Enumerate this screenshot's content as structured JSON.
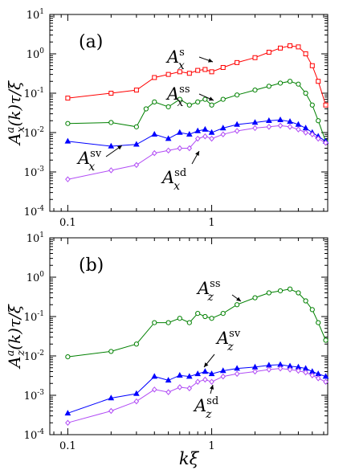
{
  "chart_data": [
    {
      "type": "line",
      "panel_label": "(a)",
      "ylabel": "A_x^a(k)τ/ξ",
      "xscale": "log",
      "yscale": "log",
      "xlim": [
        0.075,
        6.4
      ],
      "ylim": [
        0.0001,
        10
      ],
      "y_ticks": [
        0.0001,
        0.001,
        0.01,
        0.1,
        1,
        10
      ],
      "y_tick_labels": [
        [
          "10",
          "-4"
        ],
        [
          "10",
          "-3"
        ],
        [
          "10",
          "-2"
        ],
        [
          "10",
          "-1"
        ],
        [
          "10",
          "0"
        ],
        [
          "10",
          "1"
        ]
      ],
      "x_ticks": [
        0.1,
        1
      ],
      "x_tick_labels": [
        "0.1",
        "1"
      ],
      "series": [
        {
          "name": "A_x^s",
          "label_base": "A",
          "label_sub": "x",
          "label_sup": "s",
          "color": "#ff0000",
          "marker": "square",
          "x": [
            0.1,
            0.2,
            0.3,
            0.4,
            0.5,
            0.6,
            0.7,
            0.8,
            0.9,
            1.0,
            1.2,
            1.5,
            2.0,
            2.5,
            3.0,
            3.5,
            4.0,
            4.5,
            5.0,
            5.5,
            6.2
          ],
          "y": [
            0.075,
            0.1,
            0.12,
            0.25,
            0.3,
            0.35,
            0.32,
            0.38,
            0.4,
            0.35,
            0.45,
            0.6,
            0.8,
            1.1,
            1.4,
            1.6,
            1.5,
            1.0,
            0.5,
            0.2,
            0.05
          ]
        },
        {
          "name": "A_x^ss",
          "label_base": "A",
          "label_sub": "x",
          "label_sup": "ss",
          "color": "#008000",
          "marker": "circle",
          "x": [
            0.1,
            0.2,
            0.3,
            0.35,
            0.4,
            0.5,
            0.6,
            0.7,
            0.8,
            0.9,
            1.0,
            1.2,
            1.5,
            2.0,
            2.5,
            3.0,
            3.5,
            4.0,
            4.5,
            5.0,
            5.5,
            6.2
          ],
          "y": [
            0.017,
            0.018,
            0.014,
            0.04,
            0.06,
            0.045,
            0.07,
            0.05,
            0.06,
            0.07,
            0.05,
            0.07,
            0.09,
            0.12,
            0.15,
            0.18,
            0.2,
            0.17,
            0.1,
            0.05,
            0.02,
            0.006
          ]
        },
        {
          "name": "A_x^sv",
          "label_base": "A",
          "label_sub": "x",
          "label_sup": "sv",
          "color": "#0000ff",
          "marker": "triangle",
          "x": [
            0.1,
            0.2,
            0.3,
            0.4,
            0.5,
            0.6,
            0.7,
            0.8,
            0.9,
            1.0,
            1.2,
            1.5,
            2.0,
            2.5,
            3.0,
            3.5,
            4.0,
            4.5,
            5.0,
            5.5,
            6.2
          ],
          "y": [
            0.006,
            0.0045,
            0.005,
            0.009,
            0.007,
            0.01,
            0.009,
            0.011,
            0.012,
            0.01,
            0.013,
            0.016,
            0.018,
            0.02,
            0.021,
            0.019,
            0.016,
            0.013,
            0.01,
            0.008,
            0.006
          ]
        },
        {
          "name": "A_x^sd",
          "label_base": "A",
          "label_sub": "x",
          "label_sup": "sd",
          "color": "#b14cf5",
          "marker": "diamond",
          "x": [
            0.1,
            0.2,
            0.3,
            0.4,
            0.5,
            0.6,
            0.7,
            0.8,
            0.9,
            1.0,
            1.2,
            1.5,
            2.0,
            2.5,
            3.0,
            3.5,
            4.0,
            4.5,
            5.0,
            5.5,
            6.2
          ],
          "y": [
            0.00065,
            0.0011,
            0.0015,
            0.003,
            0.0035,
            0.004,
            0.004,
            0.007,
            0.008,
            0.007,
            0.009,
            0.011,
            0.013,
            0.014,
            0.015,
            0.014,
            0.012,
            0.01,
            0.009,
            0.007,
            0.0055
          ]
        }
      ]
    },
    {
      "type": "line",
      "panel_label": "(b)",
      "ylabel": "A_z^a(k)τ/ξ",
      "xlabel": "kξ",
      "xscale": "log",
      "yscale": "log",
      "xlim": [
        0.075,
        6.4
      ],
      "ylim": [
        0.0001,
        10
      ],
      "y_ticks": [
        0.0001,
        0.001,
        0.01,
        0.1,
        1,
        10
      ],
      "y_tick_labels": [
        [
          "10",
          "-4"
        ],
        [
          "10",
          "-3"
        ],
        [
          "10",
          "-2"
        ],
        [
          "10",
          "-1"
        ],
        [
          "10",
          "0"
        ],
        [
          "10",
          "1"
        ]
      ],
      "x_ticks": [
        0.1,
        1
      ],
      "x_tick_labels": [
        "0.1",
        "1"
      ],
      "series": [
        {
          "name": "A_z^ss",
          "label_base": "A",
          "label_sub": "z",
          "label_sup": "ss",
          "color": "#008000",
          "marker": "circle",
          "x": [
            0.1,
            0.2,
            0.3,
            0.4,
            0.5,
            0.6,
            0.7,
            0.8,
            0.9,
            1.0,
            1.2,
            1.5,
            2.0,
            2.5,
            3.0,
            3.5,
            4.0,
            4.5,
            5.0,
            5.5,
            6.2
          ],
          "y": [
            0.0095,
            0.013,
            0.02,
            0.07,
            0.07,
            0.09,
            0.07,
            0.12,
            0.1,
            0.09,
            0.12,
            0.2,
            0.3,
            0.4,
            0.45,
            0.5,
            0.4,
            0.25,
            0.15,
            0.07,
            0.025
          ]
        },
        {
          "name": "A_z^sv",
          "label_base": "A",
          "label_sub": "z",
          "label_sup": "sv",
          "color": "#0000ff",
          "marker": "triangle",
          "x": [
            0.1,
            0.2,
            0.3,
            0.4,
            0.5,
            0.6,
            0.7,
            0.8,
            0.9,
            1.0,
            1.2,
            1.5,
            2.0,
            2.5,
            3.0,
            3.5,
            4.0,
            4.5,
            5.0,
            5.5,
            6.2
          ],
          "y": [
            0.00035,
            0.00085,
            0.0011,
            0.003,
            0.0024,
            0.0032,
            0.003,
            0.0035,
            0.004,
            0.0035,
            0.0042,
            0.0048,
            0.0052,
            0.0058,
            0.006,
            0.0055,
            0.0052,
            0.0048,
            0.004,
            0.0035,
            0.003
          ]
        },
        {
          "name": "A_z^sd",
          "label_base": "A",
          "label_sub": "z",
          "label_sup": "sd",
          "color": "#b14cf5",
          "marker": "diamond",
          "x": [
            0.1,
            0.2,
            0.3,
            0.4,
            0.5,
            0.6,
            0.7,
            0.8,
            0.9,
            1.0,
            1.2,
            1.5,
            2.0,
            2.5,
            3.0,
            3.5,
            4.0,
            4.5,
            5.0,
            5.5,
            6.2
          ],
          "y": [
            0.0002,
            0.0004,
            0.0007,
            0.0014,
            0.0012,
            0.0016,
            0.0015,
            0.0022,
            0.0025,
            0.0022,
            0.003,
            0.0035,
            0.004,
            0.0045,
            0.0048,
            0.0045,
            0.0042,
            0.0038,
            0.0032,
            0.0027,
            0.0022
          ]
        }
      ]
    }
  ]
}
